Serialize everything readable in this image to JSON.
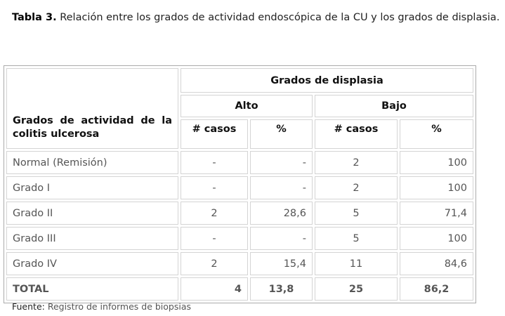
{
  "caption": {
    "label": "Tabla 3.",
    "text": " Relación entre los grados de actividad endoscópica de la CU y los grados de displasia."
  },
  "table": {
    "row_header": "Grados de actividad de la colitis ulcerosa",
    "group_header": "Grados de displasia",
    "subgroups": [
      "Alto",
      "Bajo"
    ],
    "columns": [
      "# casos",
      "%",
      "# casos",
      "%"
    ],
    "rows": [
      [
        "Normal (Remisión)",
        "-",
        "-",
        "2",
        "100"
      ],
      [
        "Grado I",
        "-",
        "-",
        "2",
        "100"
      ],
      [
        "Grado II",
        "2",
        "28,6",
        "5",
        "71,4"
      ],
      [
        "Grado III",
        "-",
        "-",
        "5",
        "100"
      ],
      [
        "Grado IV",
        "2",
        "15,4",
        "11",
        "84,6"
      ],
      [
        "TOTAL",
        "4",
        "13,8",
        "25",
        "86,2"
      ]
    ]
  },
  "footnote": {
    "label": "Fuente:",
    "text": " Registro de informes de biopsias"
  }
}
